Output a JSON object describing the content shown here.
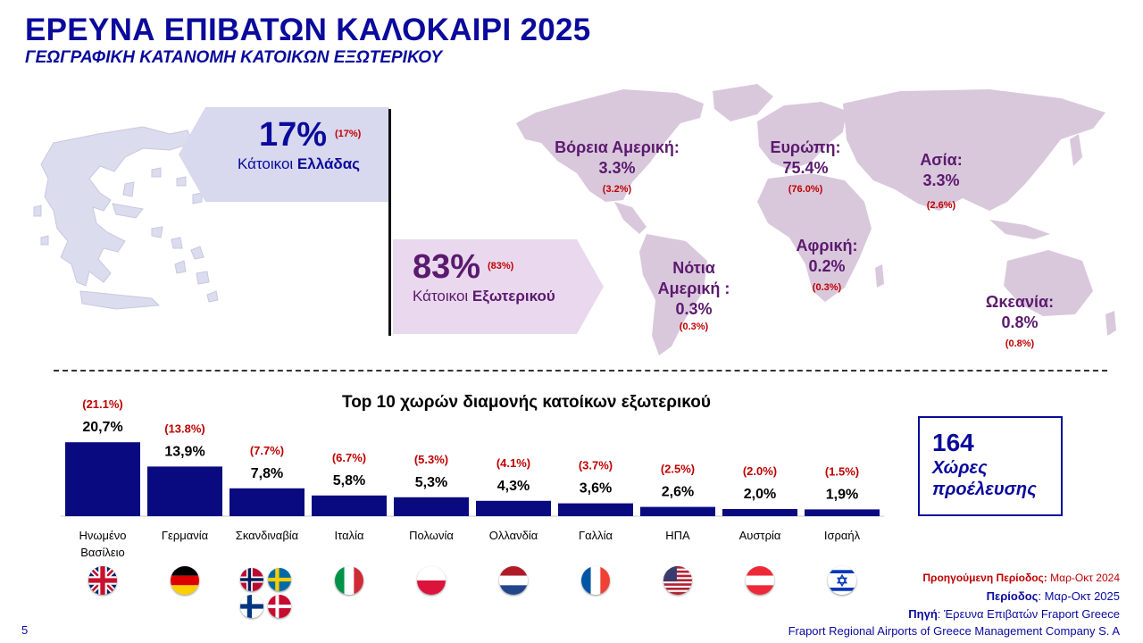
{
  "header": {
    "title": "ΕΡΕΥΝΑ ΕΠΙΒΑΤΩΝ ΚΑΛΟΚΑΙΡΙ 2025",
    "subtitle": "ΓΕΩΓΡΑΦΙΚΗ ΚΑΤΑΝΟΜΗ ΚΑΤΟΙΚΩΝ ΕΞΩΤΕΡΙΚΟΥ"
  },
  "residents": {
    "greece": {
      "pct": "17%",
      "prev": "(17%)",
      "label_prefix": "Κάτοικοι ",
      "label_bold": "Ελλάδας"
    },
    "abroad": {
      "pct": "83%",
      "prev": "(83%)",
      "label_prefix": "Κάτοικοι ",
      "label_bold": "Εξωτερικού"
    }
  },
  "regions": [
    {
      "name": "Βόρεια Αμερική:",
      "value": "3.3%",
      "prev": "(3.2%)"
    },
    {
      "name": "Ευρώπη:",
      "value": "75.4%",
      "prev": "(76.0%)"
    },
    {
      "name": "Ασία:",
      "value": "3.3%",
      "prev": "(2.6%)"
    },
    {
      "name": "Αφρική:",
      "value": "0.2%",
      "prev": "(0.3%)"
    },
    {
      "name_line1": "Νότια",
      "name_line2": "Αμερική :",
      "value": "0.3%",
      "prev": "(0.3%)"
    },
    {
      "name": "Ωκεανία:",
      "value": "0.8%",
      "prev": "(0.8%)"
    }
  ],
  "countries_box": {
    "count": "164",
    "line1": "Χώρες",
    "line2": "προέλευσης"
  },
  "chart_data": {
    "type": "bar",
    "title": "Top 10 χωρών διαμονής κατοίκων εξωτερικού",
    "categories": [
      "Ηνωμένο Βασίλειο",
      "Γερμανία",
      "Σκανδιναβία",
      "Ιταλία",
      "Πολωνία",
      "Ολλανδία",
      "Γαλλία",
      "ΗΠΑ",
      "Αυστρία",
      "Ισραήλ"
    ],
    "category_lines": [
      [
        "Ηνωμένο",
        "Βασίλειο"
      ],
      [
        "Γερμανία"
      ],
      [
        "Σκανδιναβία"
      ],
      [
        "Ιταλία"
      ],
      [
        "Πολωνία"
      ],
      [
        "Ολλανδία"
      ],
      [
        "Γαλλία"
      ],
      [
        "ΗΠΑ"
      ],
      [
        "Αυστρία"
      ],
      [
        "Ισραήλ"
      ]
    ],
    "series": [
      {
        "name": "Μαρ-Οκτ 2025",
        "values": [
          20.7,
          13.9,
          7.8,
          5.8,
          5.3,
          4.3,
          3.6,
          2.6,
          2.0,
          1.9
        ],
        "labels": [
          "20,7%",
          "13,9%",
          "7,8%",
          "5,8%",
          "5,3%",
          "4,3%",
          "3,6%",
          "2,6%",
          "2,0%",
          "1,9%"
        ]
      },
      {
        "name": "Μαρ-Οκτ 2024",
        "values": [
          21.1,
          13.8,
          7.7,
          6.7,
          5.3,
          4.1,
          3.7,
          2.5,
          2.0,
          1.5
        ],
        "labels": [
          "(21.1%)",
          "(13.8%)",
          "(7.7%)",
          "(6.7%)",
          "(5.3%)",
          "(4.1%)",
          "(3.7%)",
          "(2.5%)",
          "(2.0%)",
          "(1.5%)"
        ]
      }
    ],
    "ylim": [
      0,
      25
    ],
    "grid": false,
    "bar_color": "#0a0a80",
    "prev_color": "#c00000"
  },
  "footer": {
    "prev_label": "Προηγούμενη Περίοδος:",
    "prev_value": " Μαρ-Οκτ  2024",
    "period_label": "Περίοδος",
    "period_value": ": Μαρ-Οκτ 2025",
    "source_label": "Πηγή",
    "source_value": ": Έρευνα Επιβατών Fraport Greece",
    "company": "Fraport Regional Airports of Greece Management Company S. A",
    "page": "5"
  },
  "colors": {
    "brand": "#0a0a9c",
    "regions": "#5b1a6e",
    "previous": "#c00000",
    "map": "#d9c8dc"
  }
}
